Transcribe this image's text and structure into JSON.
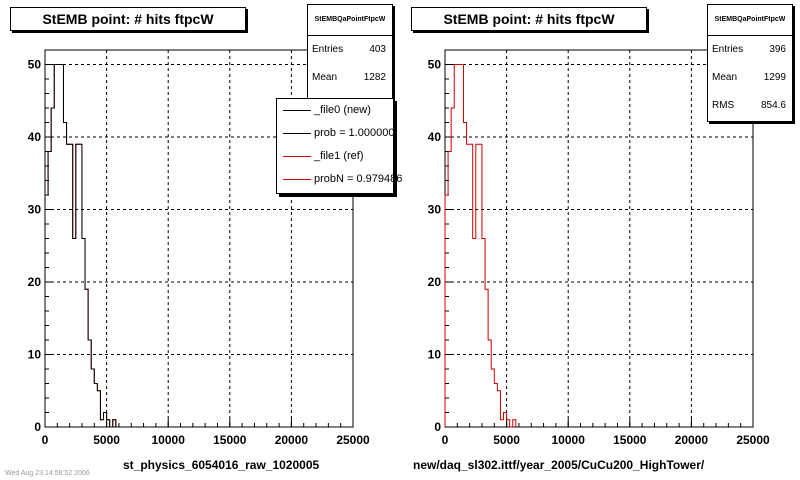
{
  "panels": [
    {
      "title": "StEMB point: # hits ftpcW",
      "stats": {
        "name": "StEMBQaPointFtpcW",
        "rows": [
          {
            "key": "Entries",
            "value": "403"
          },
          {
            "key": "Mean",
            "value": "1282"
          }
        ]
      },
      "legend": [
        {
          "label": "_file0 (new)",
          "color": "#000000"
        },
        {
          "label": "prob = 1.000000",
          "color": "#000000"
        },
        {
          "label": "_file1 (ref)",
          "color": "#cc0000"
        },
        {
          "label": "probN = 0.979486",
          "color": "#cc0000"
        }
      ],
      "xlabel": "st_physics_6054016_raw_1020005"
    },
    {
      "title": "StEMB point: # hits ftpcW",
      "stats": {
        "name": "StEMBQaPointFtpcW",
        "rows": [
          {
            "key": "Entries",
            "value": "396"
          },
          {
            "key": "Mean",
            "value": "1299"
          },
          {
            "key": "RMS",
            "value": "854.6"
          }
        ]
      },
      "legend": [],
      "xlabel": "new/daq_sl302.ittf/year_2005/CuCu200_HighTower/"
    }
  ],
  "footer_text": "Wed Aug 23 14:58:52 2006",
  "chart_data": [
    {
      "type": "line",
      "title": "StEMB point: # hits ftpcW",
      "xlabel": "st_physics_6054016_raw_1020005",
      "ylabel": "",
      "xlim": [
        0,
        25000
      ],
      "ylim": [
        0,
        52
      ],
      "xticks": [
        0,
        5000,
        10000,
        15000,
        20000,
        25000
      ],
      "yticks": [
        0,
        10,
        20,
        30,
        40,
        50
      ],
      "grid": true,
      "histogram": true,
      "legend_position": "top-right",
      "bin_width": 250,
      "series": [
        {
          "name": "_file1 (ref)",
          "color": "#cc0000",
          "values": [
            32,
            38,
            44,
            50,
            50,
            50,
            42,
            39,
            39,
            26,
            39,
            39,
            26,
            19,
            12,
            8,
            6,
            5,
            1,
            2,
            1,
            0,
            1
          ]
        },
        {
          "name": "_file0 (new)",
          "color": "#000000",
          "values": [
            32,
            38,
            44,
            50,
            50,
            50,
            42,
            39,
            39,
            26,
            39,
            39,
            26,
            19,
            12,
            8,
            6,
            5,
            1,
            2,
            1,
            0,
            1
          ]
        }
      ]
    },
    {
      "type": "line",
      "title": "StEMB point: # hits ftpcW",
      "xlabel": "new/daq_sl302.ittf/year_2005/CuCu200_HighTower/",
      "ylabel": "",
      "xlim": [
        0,
        25000
      ],
      "ylim": [
        0,
        52
      ],
      "xticks": [
        0,
        5000,
        10000,
        15000,
        20000,
        25000
      ],
      "yticks": [
        0,
        10,
        20,
        30,
        40,
        50
      ],
      "grid": true,
      "histogram": true,
      "bin_width": 250,
      "series": [
        {
          "name": "",
          "color": "#cc0000",
          "values": [
            32,
            38,
            44,
            50,
            50,
            50,
            42,
            39,
            39,
            26,
            39,
            39,
            26,
            19,
            12,
            8,
            6,
            5,
            1,
            2,
            1,
            0,
            1
          ]
        }
      ]
    }
  ]
}
